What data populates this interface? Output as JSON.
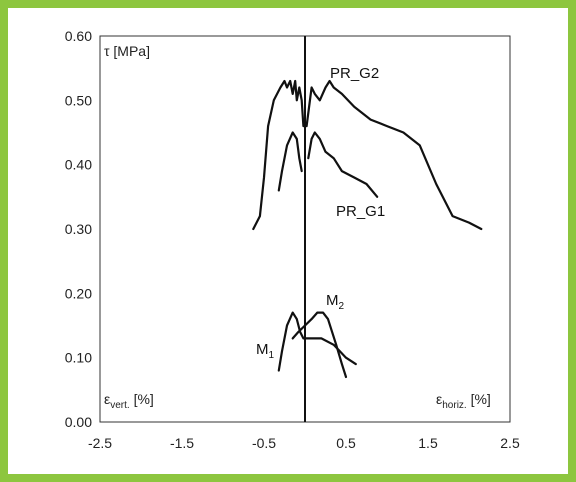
{
  "colors": {
    "frame": "#8dc63f",
    "plot_bg": "#ffffff",
    "line": "#111111",
    "grid": "#cccccc"
  },
  "chart_data": {
    "type": "line",
    "title": "",
    "ylabel": "τ [MPa]",
    "xlabel_left": "ε_vert. [%]",
    "xlabel_right": "ε_horiz. [%]",
    "xlim": [
      -2.5,
      2.5
    ],
    "ylim": [
      0.0,
      0.6
    ],
    "xticks": [
      -2.5,
      -1.5,
      -0.5,
      0.5,
      1.5,
      2.5
    ],
    "xtick_labels": [
      "-2.5",
      "-1.5",
      "-0.5",
      "0.5",
      "1.5",
      "2.5"
    ],
    "yticks": [
      0.0,
      0.1,
      0.2,
      0.3,
      0.4,
      0.5,
      0.6
    ],
    "ytick_labels": [
      "0.00",
      "0.10",
      "0.20",
      "0.30",
      "0.40",
      "0.50",
      "0.60"
    ],
    "grid": false,
    "series": [
      {
        "name": "PR_G2",
        "x": [
          -0.63,
          -0.55,
          -0.5,
          -0.45,
          -0.38,
          -0.3,
          -0.25,
          -0.22,
          -0.18,
          -0.15,
          -0.12,
          -0.1,
          -0.07,
          -0.04,
          -0.02
        ],
        "y": [
          0.3,
          0.32,
          0.38,
          0.46,
          0.5,
          0.52,
          0.53,
          0.52,
          0.53,
          0.51,
          0.53,
          0.5,
          0.52,
          0.5,
          0.46
        ]
      },
      {
        "name": "PR_G2",
        "x": [
          0.02,
          0.05,
          0.08,
          0.12,
          0.18,
          0.25,
          0.3,
          0.35,
          0.45,
          0.6,
          0.8,
          1.0,
          1.2,
          1.4,
          1.6,
          1.8,
          2.0,
          2.15
        ],
        "y": [
          0.46,
          0.49,
          0.52,
          0.51,
          0.5,
          0.52,
          0.53,
          0.52,
          0.51,
          0.49,
          0.47,
          0.46,
          0.45,
          0.43,
          0.37,
          0.32,
          0.31,
          0.3
        ]
      },
      {
        "name": "PR_G1",
        "x": [
          -0.32,
          -0.28,
          -0.22,
          -0.15,
          -0.1,
          -0.07,
          -0.04
        ],
        "y": [
          0.36,
          0.39,
          0.43,
          0.45,
          0.44,
          0.41,
          0.39
        ]
      },
      {
        "name": "PR_G1",
        "x": [
          0.04,
          0.08,
          0.12,
          0.18,
          0.25,
          0.35,
          0.45,
          0.6,
          0.75,
          0.88
        ],
        "y": [
          0.41,
          0.44,
          0.45,
          0.44,
          0.42,
          0.41,
          0.39,
          0.38,
          0.37,
          0.35
        ]
      },
      {
        "name": "M2",
        "x": [
          -0.15,
          -0.08,
          0.0,
          0.08,
          0.15,
          0.22,
          0.28,
          0.33,
          0.38,
          0.45,
          0.5
        ],
        "y": [
          0.13,
          0.14,
          0.15,
          0.16,
          0.17,
          0.17,
          0.16,
          0.14,
          0.12,
          0.09,
          0.07
        ]
      },
      {
        "name": "M1",
        "x": [
          -0.32,
          -0.28,
          -0.22,
          -0.15,
          -0.1,
          -0.06,
          -0.02,
          0.05,
          0.2,
          0.35,
          0.5,
          0.62
        ],
        "y": [
          0.08,
          0.11,
          0.15,
          0.17,
          0.16,
          0.14,
          0.13,
          0.13,
          0.13,
          0.12,
          0.1,
          0.09
        ]
      }
    ],
    "annotations": {
      "PR_G2": "PR_G2",
      "PR_G1": "PR_G1",
      "M2": "M",
      "M2_sub": "2",
      "M1": "M",
      "M1_sub": "1"
    }
  }
}
